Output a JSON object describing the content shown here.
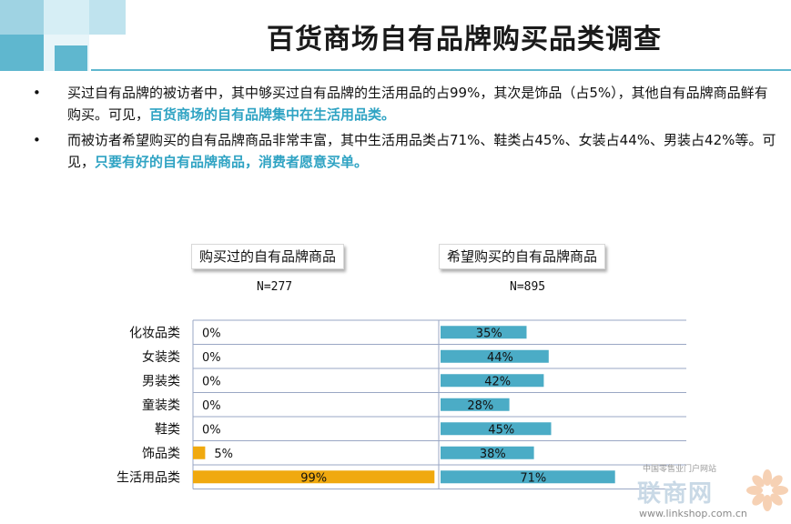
{
  "title": "百货商场自有品牌购买品类调查",
  "bullets": [
    {
      "text": "买过自有品牌的被访者中，其中够买过自有品牌的生活用品的占99%，其次是饰品（占5%），其他自有品牌商品鲜有购买。可见，",
      "highlight": "百货商场的自有品牌集中在生活用品类。"
    },
    {
      "text": "而被访者希望购买的自有品牌商品非常丰富，其中生活用品类占71%、鞋类占45%、女装占44%、男装占42%等。可见，",
      "highlight": "只要有好的自有品牌商品，消费者愿意买单。"
    }
  ],
  "colors": {
    "accent": "#2fa3c3",
    "bar_left": "#f0a90f",
    "bar_right": "#4bacc6",
    "rule": "#5fb7cf"
  },
  "chart_data": [
    {
      "type": "bar",
      "orientation": "horizontal",
      "title": "购买过的自有品牌商品",
      "subtitle": "N=277",
      "categories": [
        "化妆品类",
        "女装类",
        "男装类",
        "童装类",
        "鞋类",
        "饰品类",
        "生活用品类"
      ],
      "values": [
        0,
        0,
        0,
        0,
        0,
        5,
        99
      ],
      "value_labels": [
        "0%",
        "0%",
        "0%",
        "0%",
        "0%",
        "5%",
        "99%"
      ],
      "xlim": [
        0,
        100
      ]
    },
    {
      "type": "bar",
      "orientation": "horizontal",
      "title": "希望购买的自有品牌商品",
      "subtitle": "N=895",
      "categories": [
        "化妆品类",
        "女装类",
        "男装类",
        "童装类",
        "鞋类",
        "饰品类",
        "生活用品类"
      ],
      "values": [
        35,
        44,
        42,
        28,
        45,
        38,
        71
      ],
      "value_labels": [
        "35%",
        "44%",
        "42%",
        "28%",
        "45%",
        "38%",
        "71%"
      ],
      "xlim": [
        0,
        100
      ]
    }
  ],
  "watermark": {
    "top": "中国零售业门户网站",
    "brand": "联商网",
    "url": "www.linkshop.com.cn"
  }
}
